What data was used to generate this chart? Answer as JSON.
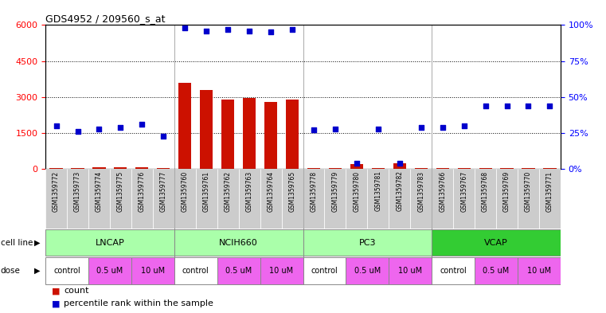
{
  "title": "GDS4952 / 209560_s_at",
  "samples": [
    "GSM1359772",
    "GSM1359773",
    "GSM1359774",
    "GSM1359775",
    "GSM1359776",
    "GSM1359777",
    "GSM1359760",
    "GSM1359761",
    "GSM1359762",
    "GSM1359763",
    "GSM1359764",
    "GSM1359765",
    "GSM1359778",
    "GSM1359779",
    "GSM1359780",
    "GSM1359781",
    "GSM1359782",
    "GSM1359783",
    "GSM1359766",
    "GSM1359767",
    "GSM1359768",
    "GSM1359769",
    "GSM1359770",
    "GSM1359771"
  ],
  "counts": [
    50,
    40,
    80,
    60,
    70,
    30,
    3600,
    3300,
    2900,
    2950,
    2800,
    2900,
    40,
    35,
    200,
    45,
    250,
    40,
    40,
    35,
    45,
    40,
    40,
    35
  ],
  "percentile": [
    30,
    26,
    28,
    29,
    31,
    23,
    98,
    96,
    97,
    96,
    95,
    97,
    27,
    28,
    4,
    28,
    4,
    29,
    29,
    30,
    44,
    44,
    44,
    44
  ],
  "cell_lines": [
    {
      "name": "LNCAP",
      "start": 0,
      "end": 6,
      "color": "#aaffaa"
    },
    {
      "name": "NCIH660",
      "start": 6,
      "end": 12,
      "color": "#aaffaa"
    },
    {
      "name": "PC3",
      "start": 12,
      "end": 18,
      "color": "#aaffaa"
    },
    {
      "name": "VCAP",
      "start": 18,
      "end": 24,
      "color": "#33cc33"
    }
  ],
  "doses": [
    {
      "name": "control",
      "color": "#ffffff",
      "start": 0,
      "end": 2
    },
    {
      "name": "0.5 uM",
      "color": "#ee66ee",
      "start": 2,
      "end": 4
    },
    {
      "name": "10 uM",
      "color": "#ee66ee",
      "start": 4,
      "end": 6
    },
    {
      "name": "control",
      "color": "#ffffff",
      "start": 6,
      "end": 8
    },
    {
      "name": "0.5 uM",
      "color": "#ee66ee",
      "start": 8,
      "end": 10
    },
    {
      "name": "10 uM",
      "color": "#ee66ee",
      "start": 10,
      "end": 12
    },
    {
      "name": "control",
      "color": "#ffffff",
      "start": 12,
      "end": 14
    },
    {
      "name": "0.5 uM",
      "color": "#ee66ee",
      "start": 14,
      "end": 16
    },
    {
      "name": "10 uM",
      "color": "#ee66ee",
      "start": 16,
      "end": 18
    },
    {
      "name": "control",
      "color": "#ffffff",
      "start": 18,
      "end": 20
    },
    {
      "name": "0.5 uM",
      "color": "#ee66ee",
      "start": 20,
      "end": 22
    },
    {
      "name": "10 uM",
      "color": "#ee66ee",
      "start": 22,
      "end": 24
    }
  ],
  "ylim_left": [
    0,
    6000
  ],
  "ylim_right": [
    0,
    100
  ],
  "yticks_left": [
    0,
    1500,
    3000,
    4500,
    6000
  ],
  "yticks_right": [
    0,
    25,
    50,
    75,
    100
  ],
  "bar_color": "#cc1100",
  "dot_color": "#0000cc",
  "sample_bg": "#cccccc",
  "title_fontsize": 9,
  "cell_line_label": "cell line",
  "dose_label": "dose",
  "legend_count": "count",
  "legend_percentile": "percentile rank within the sample"
}
